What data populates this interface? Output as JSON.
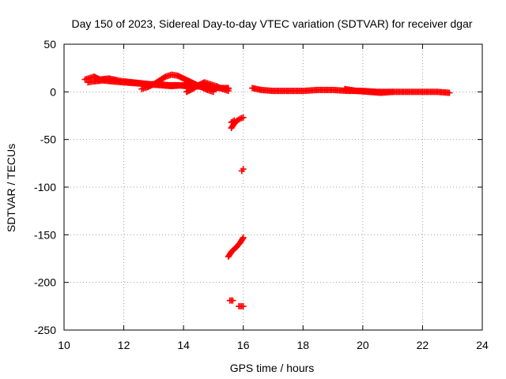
{
  "chart_data": {
    "type": "scatter",
    "title": "Day 150 of 2023, Sidereal Day-to-day VTEC variation (SDTVAR) for receiver dgar",
    "xlabel": "GPS time / hours",
    "ylabel": "SDTVAR / TECUs",
    "xlim": [
      10,
      24
    ],
    "ylim": [
      -250,
      50
    ],
    "xticks": [
      10,
      12,
      14,
      16,
      18,
      20,
      22,
      24
    ],
    "yticks": [
      -250,
      -200,
      -150,
      -100,
      -50,
      0,
      50
    ],
    "grid": true,
    "marker": "plus",
    "color": "#ff0000",
    "series": [
      {
        "name": "SDTVAR",
        "segments": [
          {
            "x": [
              10.7,
              10.9,
              11.0,
              11.2,
              11.5,
              11.8,
              12.0,
              12.3,
              12.6,
              12.9,
              13.2,
              13.5,
              13.8,
              14.1,
              14.4,
              14.7,
              15.0,
              15.3,
              15.5
            ],
            "y": [
              13,
              15,
              16,
              13,
              14,
              12,
              11,
              10,
              9,
              8,
              8,
              7,
              7,
              6,
              6,
              5,
              4,
              4,
              3
            ]
          },
          {
            "x": [
              10.8,
              11.0,
              11.3,
              11.6,
              12.0,
              12.4,
              12.8,
              13.2,
              13.6,
              14.0,
              14.4,
              14.8,
              15.2,
              15.5
            ],
            "y": [
              10,
              11,
              12,
              11,
              10,
              9,
              8,
              7,
              6,
              7,
              6,
              5,
              4,
              4
            ]
          },
          {
            "x": [
              12.6,
              12.8,
              13.0,
              13.2,
              13.4,
              13.6,
              13.8,
              14.0,
              14.2,
              14.4,
              14.6,
              14.8,
              15.0
            ],
            "y": [
              3,
              5,
              8,
              12,
              16,
              18,
              17,
              14,
              11,
              8,
              5,
              2,
              0
            ]
          },
          {
            "x": [
              14.1,
              14.3,
              14.5,
              14.7,
              14.9,
              15.1,
              15.3,
              15.5
            ],
            "y": [
              0,
              3,
              7,
              10,
              8,
              6,
              3,
              1
            ]
          },
          {
            "x": [
              16.3,
              16.6,
              17.0,
              17.5,
              18.0,
              18.5,
              19.0,
              19.5,
              20.0,
              20.5,
              21.0,
              21.5,
              22.0,
              22.5,
              22.9
            ],
            "y": [
              4,
              2,
              1,
              1,
              1,
              2,
              2,
              1,
              1,
              0,
              0,
              0,
              0,
              0,
              -1
            ]
          },
          {
            "x": [
              19.4,
              19.8,
              20.2,
              20.6,
              21.0
            ],
            "y": [
              3,
              1,
              0,
              -1,
              0
            ]
          },
          {
            "x": [
              15.6,
              15.7,
              15.8,
              15.9,
              16.0
            ],
            "y": [
              -38,
              -33,
              -30,
              -28,
              -27
            ]
          },
          {
            "x": [
              15.6,
              15.7
            ],
            "y": [
              -32,
              -30
            ]
          },
          {
            "x": [
              15.95,
              16.0
            ],
            "y": [
              -83,
              -81
            ]
          },
          {
            "x": [
              15.5,
              15.6,
              15.7,
              15.8,
              15.9,
              16.0
            ],
            "y": [
              -173,
              -168,
              -165,
              -162,
              -158,
              -153
            ]
          },
          {
            "x": [
              15.55,
              15.65
            ],
            "y": [
              -219,
              -219
            ]
          },
          {
            "x": [
              15.85,
              15.95,
              16.0
            ],
            "y": [
              -225,
              -225,
              -225
            ]
          }
        ]
      }
    ]
  }
}
